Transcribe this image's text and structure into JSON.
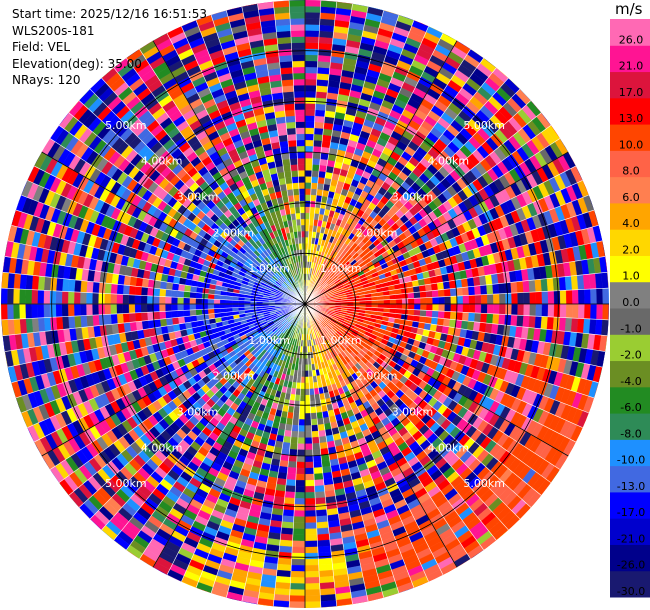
{
  "info": {
    "start_time": "Start time: 2025/12/16 16:51:53",
    "instrument": "WLS200s-181",
    "field": "Field: VEL",
    "elevation": "Elevation(deg): 35.00",
    "nrays": "NRays: 120"
  },
  "chart_data": {
    "type": "heatmap",
    "projection": "polar-ppi",
    "field": "VEL",
    "units": "m/s",
    "n_rays": 120,
    "elevation_deg": 35.0,
    "range_rings_km": [
      1.0,
      2.0,
      3.0,
      4.0,
      5.0
    ],
    "range_ring_labels": [
      "1.00km",
      "2.00km",
      "3.00km",
      "4.00km",
      "5.00km"
    ],
    "max_range_km": 6.0,
    "color_levels": [
      -30.0,
      -26.0,
      -21.0,
      -17.0,
      -13.0,
      -10.0,
      -8.0,
      -6.0,
      -4.0,
      -2.0,
      -1.0,
      0.0,
      1.0,
      2.0,
      4.0,
      6.0,
      8.0,
      10.0,
      13.0,
      17.0,
      21.0,
      26.0,
      30.0
    ],
    "colorbar_tick_labels": [
      "-30.0",
      "-26.0",
      "-21.0",
      "-17.0",
      "-13.0",
      "-10.0",
      "-8.0",
      "-6.0",
      "-4.0",
      "-2.0",
      "-1.0",
      "0.0",
      "1.0",
      "2.0",
      "4.0",
      "6.0",
      "8.0",
      "10.0",
      "13.0",
      "17.0",
      "21.0",
      "26.0"
    ],
    "colors": [
      "#191970",
      "#00008b",
      "#0000cd",
      "#0000ff",
      "#4169e1",
      "#1e90ff",
      "#2e8b57",
      "#228b22",
      "#6b8e23",
      "#9acd32",
      "#696969",
      "#808080",
      "#ffff00",
      "#ffd700",
      "#ffa500",
      "#ff7f50",
      "#ff6347",
      "#ff4500",
      "#ff0000",
      "#dc143c",
      "#ff1493",
      "#ff69b4"
    ]
  }
}
